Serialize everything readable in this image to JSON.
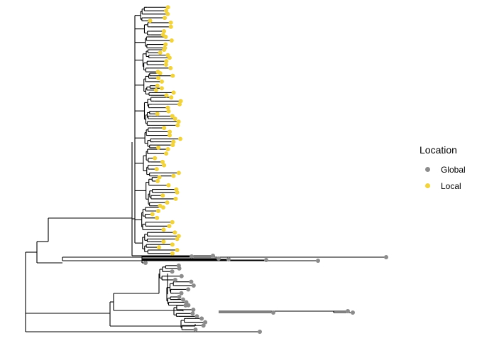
{
  "legend": {
    "title": "Location",
    "items": [
      {
        "label": "Global",
        "color": "#8c8c8c"
      },
      {
        "label": "Local",
        "color": "#f2d33c"
      }
    ]
  },
  "tree": {
    "branch_color": "#000000",
    "clusters": [
      "Local",
      "Global"
    ]
  }
}
